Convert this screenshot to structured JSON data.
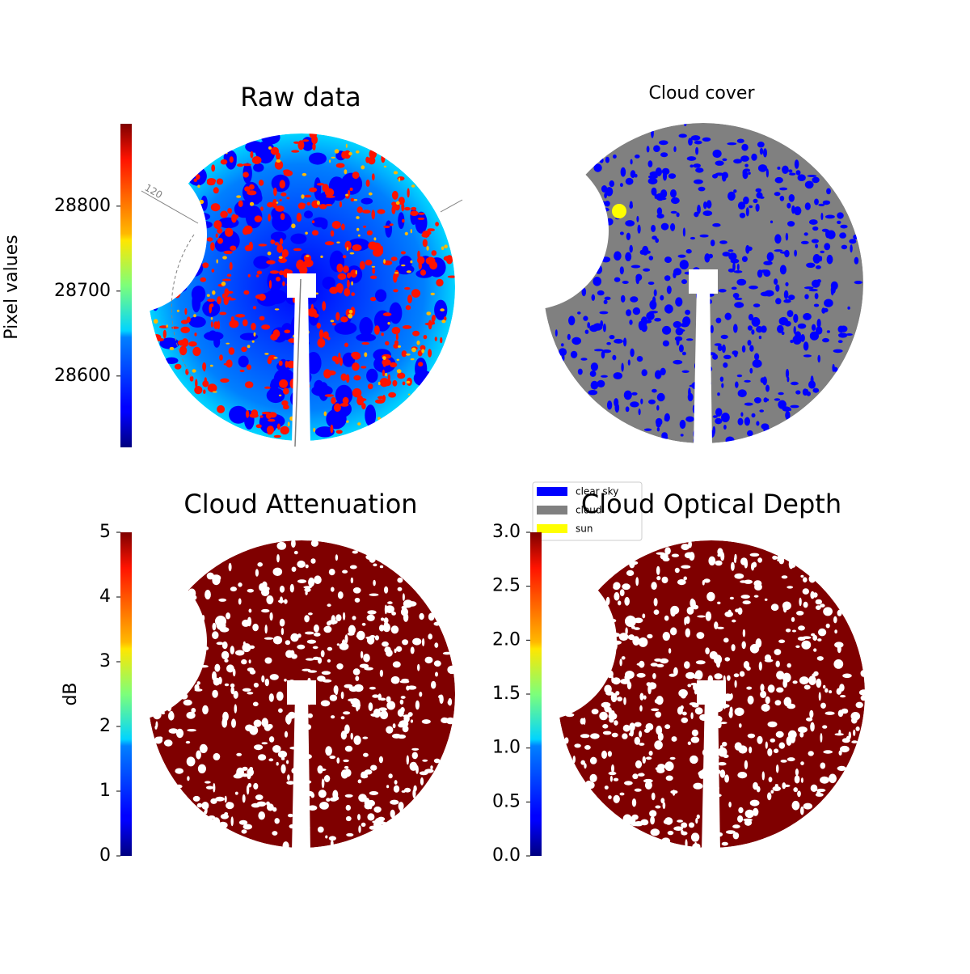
{
  "chart_data": [
    {
      "type": "image",
      "title": "Raw data",
      "colorbar_label": "Pixel values",
      "cmap": "jet",
      "clim": [
        28516,
        28897
      ],
      "cticks": [
        28600,
        28700,
        28800
      ],
      "annotations": [
        "120"
      ]
    },
    {
      "type": "image",
      "title": "Cloud cover",
      "series": [
        {
          "name": "clear sky",
          "color": "#0000ff"
        },
        {
          "name": "cloud",
          "color": "#808080"
        },
        {
          "name": "sun",
          "color": "#ffff00"
        }
      ]
    },
    {
      "type": "image",
      "title": "Cloud Attenuation",
      "colorbar_label": "dB",
      "cmap": "jet",
      "clim": [
        0,
        5
      ],
      "cticks": [
        0,
        1,
        2,
        3,
        4,
        5
      ]
    },
    {
      "type": "image",
      "title": "Cloud Optical Depth",
      "cmap": "jet",
      "clim": [
        0,
        3
      ],
      "cticks": [
        {
          "value": 0,
          "label": "0.0"
        },
        0.5,
        {
          "value": 1,
          "label": "1.0"
        },
        1.5,
        {
          "value": 2,
          "label": "2.0"
        },
        2.5,
        {
          "value": 3,
          "label": "3.0"
        }
      ]
    }
  ]
}
